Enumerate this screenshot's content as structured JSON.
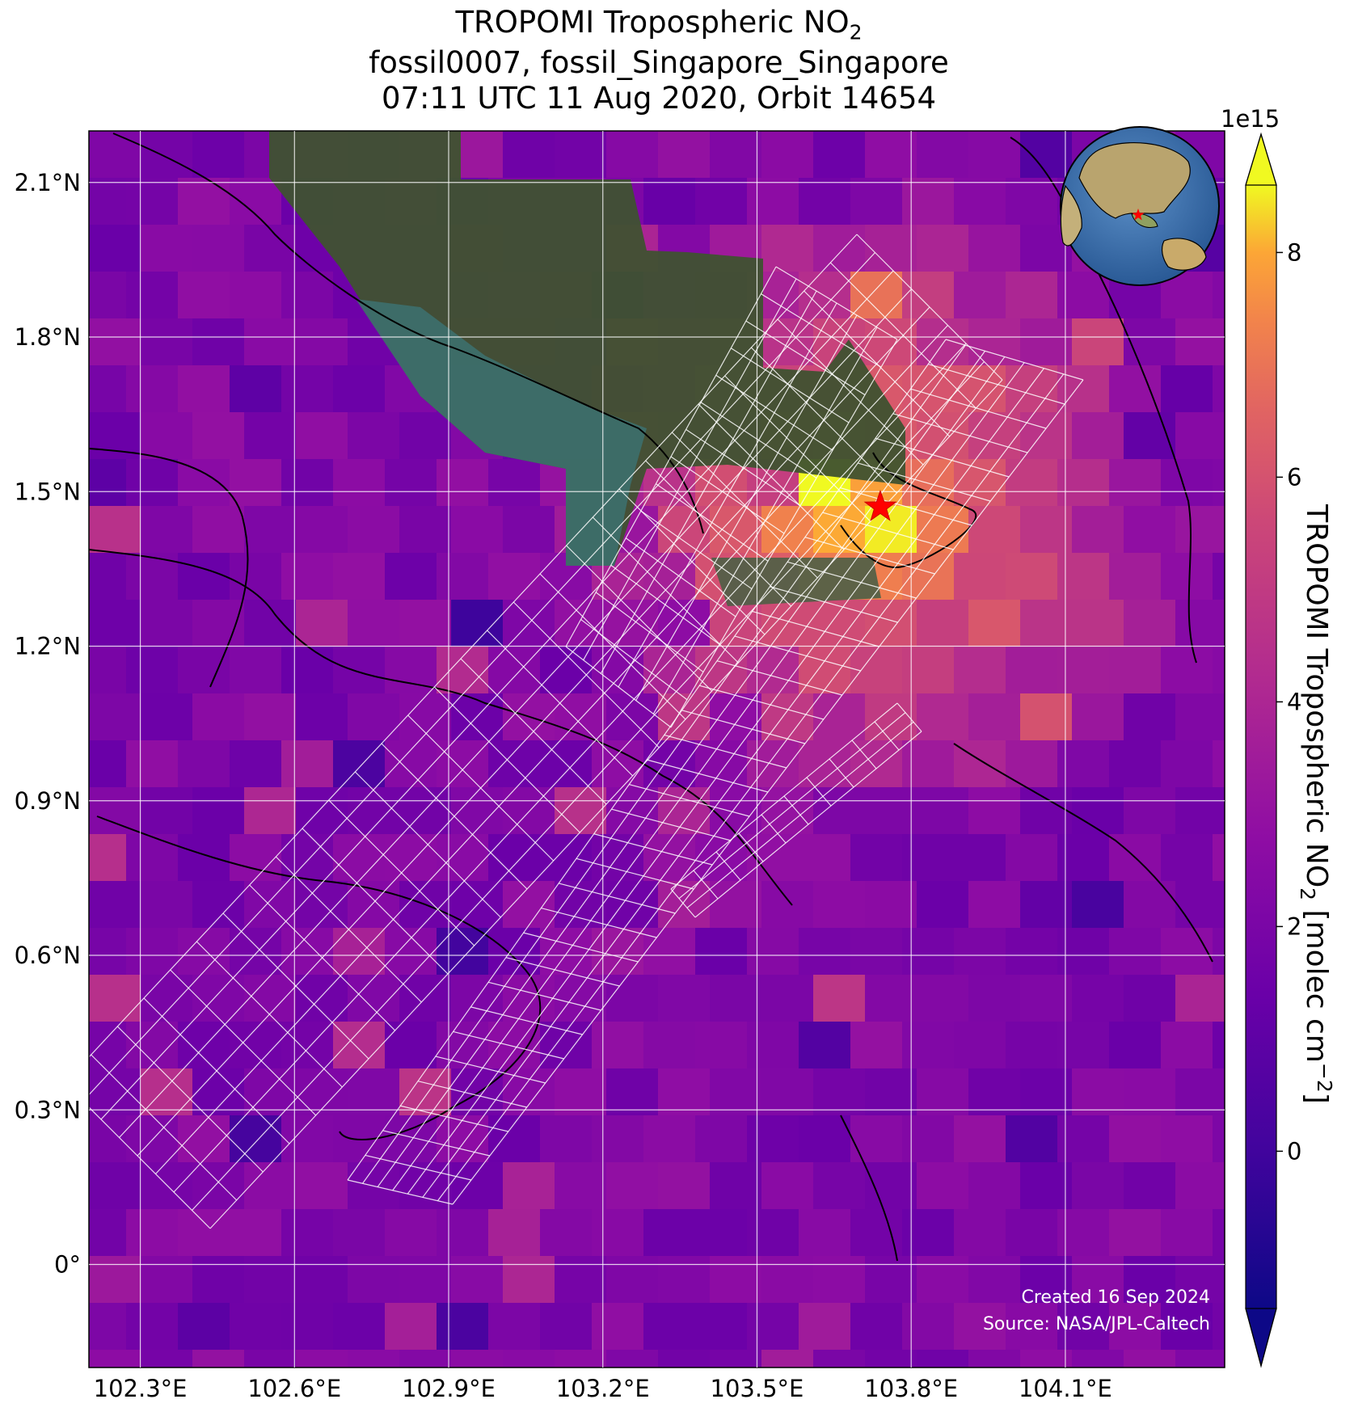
{
  "title": {
    "line1_main": "TROPOMI Tropospheric NO",
    "line1_sub": "2",
    "line2": "fossil0007, fossil_Singapore_Singapore",
    "line3": "07:11 UTC 11 Aug 2020, Orbit 14654"
  },
  "axes": {
    "lon_ticks": [
      "102.3°E",
      "102.6°E",
      "102.9°E",
      "103.2°E",
      "103.5°E",
      "103.8°E",
      "104.1°E"
    ],
    "lat_ticks": [
      "2.1°N",
      "1.8°N",
      "1.5°N",
      "1.2°N",
      "0.9°N",
      "0.6°N",
      "0.3°N",
      "0°"
    ],
    "lon_range": [
      102.2,
      104.41
    ],
    "lat_range": [
      -0.2,
      2.2
    ]
  },
  "colorbar": {
    "title_main": "TROPOMI Tropospheric NO",
    "title_sub": "2",
    "title_unit_pre": " [molec cm",
    "title_unit_sup": "−2",
    "title_unit_post": "]",
    "exponent": "1e15",
    "ticks": [
      "8",
      "6",
      "4",
      "2",
      "0"
    ],
    "range": [
      -1.4,
      8.6
    ],
    "colormap": "plasma",
    "extend": "both"
  },
  "target": {
    "marker": "red-star",
    "lon": 103.74,
    "lat": 1.47
  },
  "overlay": {
    "grid_color": "#ffffff",
    "coastline_color": "#000000"
  },
  "footer": {
    "created": "Created 16 Sep 2024",
    "source": "Source: NASA/JPL-Caltech"
  }
}
